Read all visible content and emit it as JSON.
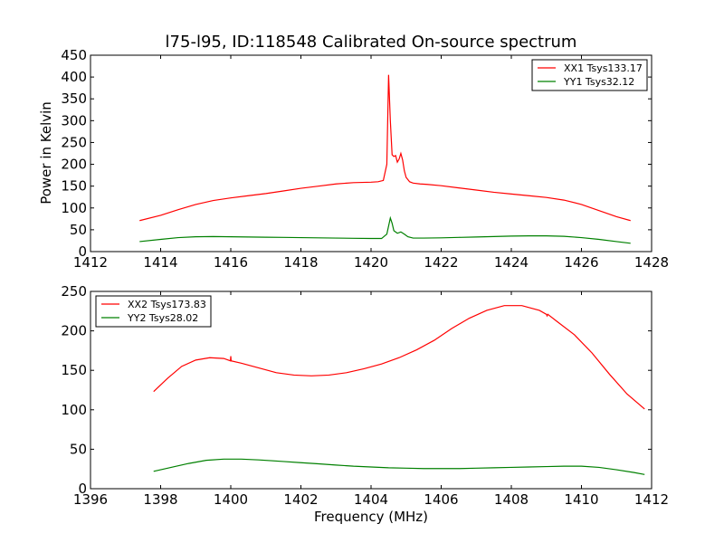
{
  "chart_data": [
    {
      "type": "line",
      "title": "l75-l95, ID:118548 Calibrated On-source spectrum",
      "xlabel": "",
      "ylabel": "Power in Kelvin",
      "xlim": [
        1412,
        1428
      ],
      "ylim": [
        0,
        450
      ],
      "xticks": [
        1412,
        1414,
        1416,
        1418,
        1420,
        1422,
        1424,
        1426,
        1428
      ],
      "yticks": [
        0,
        50,
        100,
        150,
        200,
        250,
        300,
        350,
        400,
        450
      ],
      "grid": false,
      "legend_position": "top-right",
      "series": [
        {
          "name": "XX1 Tsys133.17",
          "color": "#ff0000",
          "x": [
            1413.4,
            1414.0,
            1414.5,
            1415.0,
            1415.5,
            1416.0,
            1416.5,
            1417.0,
            1417.5,
            1418.0,
            1418.5,
            1419.0,
            1419.5,
            1420.0,
            1420.2,
            1420.35,
            1420.45,
            1420.5,
            1420.55,
            1420.6,
            1420.65,
            1420.7,
            1420.75,
            1420.8,
            1420.85,
            1420.9,
            1420.95,
            1421.0,
            1421.1,
            1421.2,
            1421.4,
            1421.6,
            1422.0,
            1422.5,
            1423.0,
            1423.5,
            1424.0,
            1424.5,
            1425.0,
            1425.5,
            1426.0,
            1426.5,
            1427.0,
            1427.4
          ],
          "values": [
            71,
            83,
            96,
            108,
            117,
            123,
            128,
            133,
            139,
            145,
            150,
            155,
            158,
            159,
            160,
            163,
            200,
            405,
            300,
            222,
            218,
            220,
            205,
            212,
            225,
            210,
            185,
            170,
            160,
            157,
            155,
            154,
            151,
            146,
            141,
            136,
            132,
            128,
            124,
            118,
            108,
            94,
            80,
            71
          ]
        },
        {
          "name": "YY1 Tsys32.12",
          "color": "#008000",
          "x": [
            1413.4,
            1414.0,
            1414.5,
            1415.0,
            1415.5,
            1416.0,
            1416.5,
            1417.0,
            1417.5,
            1418.0,
            1418.5,
            1419.0,
            1419.5,
            1420.0,
            1420.3,
            1420.45,
            1420.55,
            1420.6,
            1420.65,
            1420.75,
            1420.85,
            1420.95,
            1421.05,
            1421.2,
            1421.5,
            1422.0,
            1422.5,
            1423.0,
            1423.5,
            1424.0,
            1424.5,
            1425.0,
            1425.5,
            1426.0,
            1426.5,
            1427.0,
            1427.4
          ],
          "values": [
            23,
            28,
            32,
            34,
            34.5,
            34,
            33.5,
            33,
            32.5,
            32,
            31.5,
            31,
            30.5,
            30,
            30,
            40,
            77,
            65,
            48,
            42,
            45,
            40,
            34,
            31,
            31,
            31.5,
            32.5,
            33.5,
            34.5,
            35.5,
            36,
            36,
            35,
            32,
            28,
            23,
            19
          ]
        }
      ]
    },
    {
      "type": "line",
      "title": "",
      "xlabel": "Frequency (MHz)",
      "ylabel": "",
      "xlim": [
        1396,
        1412
      ],
      "ylim": [
        0,
        250
      ],
      "xticks": [
        1396,
        1398,
        1400,
        1402,
        1404,
        1406,
        1408,
        1410,
        1412
      ],
      "yticks": [
        0,
        50,
        100,
        150,
        200,
        250
      ],
      "grid": false,
      "legend_position": "top-left",
      "series": [
        {
          "name": "XX2 Tsys173.83",
          "color": "#ff0000",
          "x": [
            1397.8,
            1398.2,
            1398.6,
            1399.0,
            1399.4,
            1399.8,
            1399.99,
            1400.0,
            1400.01,
            1400.3,
            1400.8,
            1401.3,
            1401.8,
            1402.3,
            1402.8,
            1403.3,
            1403.8,
            1404.3,
            1404.8,
            1405.3,
            1405.8,
            1406.3,
            1406.8,
            1407.3,
            1407.8,
            1408.3,
            1408.8,
            1409.0,
            1409.02,
            1409.04,
            1409.3,
            1409.8,
            1410.3,
            1410.8,
            1411.3,
            1411.8
          ],
          "values": [
            123,
            140,
            155,
            163,
            166,
            165,
            162,
            168,
            162,
            159,
            153,
            147,
            144,
            143,
            144,
            147,
            152,
            158,
            166,
            176,
            188,
            203,
            216,
            226,
            232,
            232,
            226,
            221,
            219,
            221,
            212,
            195,
            172,
            145,
            120,
            101
          ]
        },
        {
          "name": "YY2 Tsys28.02",
          "color": "#008000",
          "x": [
            1397.8,
            1398.3,
            1398.8,
            1399.3,
            1399.8,
            1400.3,
            1400.8,
            1401.5,
            1402.0,
            1402.5,
            1403.0,
            1403.5,
            1404.0,
            1404.5,
            1405.0,
            1405.5,
            1406.0,
            1406.5,
            1407.0,
            1407.5,
            1408.0,
            1408.5,
            1409.0,
            1409.5,
            1410.0,
            1410.5,
            1411.0,
            1411.5,
            1411.8
          ],
          "values": [
            22,
            27,
            32,
            36,
            37.5,
            37.5,
            36.5,
            34.5,
            33,
            31.5,
            30,
            28.5,
            27.5,
            26.5,
            26,
            25.5,
            25.5,
            25.5,
            26,
            26.5,
            27,
            27.5,
            28,
            28.5,
            28.5,
            27,
            24,
            20.5,
            18
          ]
        }
      ]
    }
  ]
}
